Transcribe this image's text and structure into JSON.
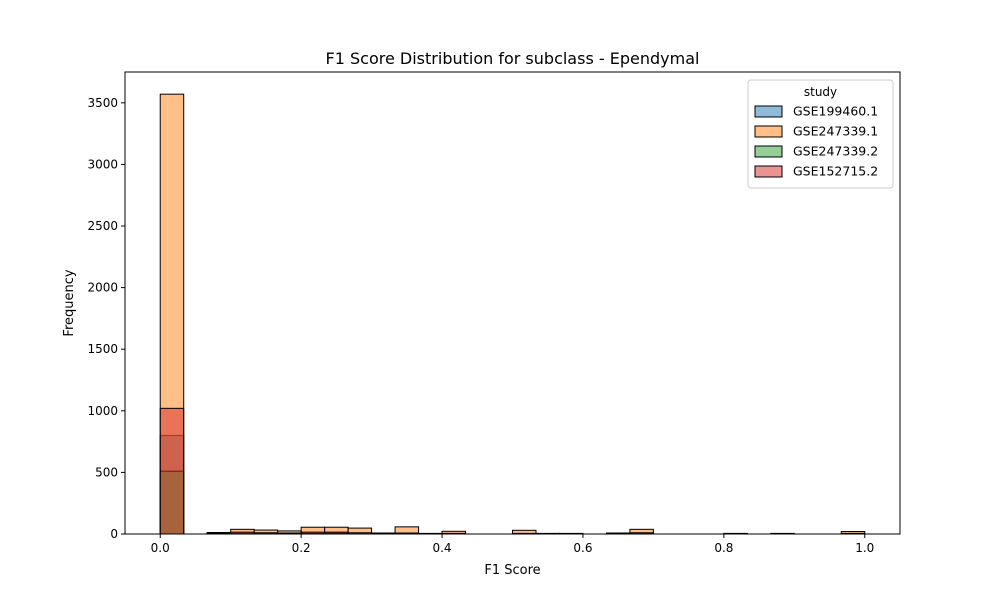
{
  "chart_data": {
    "type": "bar",
    "title": "F1 Score Distribution for subclass - Ependymal",
    "xlabel": "F1 Score",
    "ylabel": "Frequency",
    "xlim": [
      -0.05,
      1.05
    ],
    "ylim": [
      0,
      3750
    ],
    "xticks": [
      0.0,
      0.2,
      0.4,
      0.6,
      0.8,
      1.0
    ],
    "xtick_labels": [
      "0.0",
      "0.2",
      "0.4",
      "0.6",
      "0.8",
      "1.0"
    ],
    "yticks": [
      0,
      500,
      1000,
      1500,
      2000,
      2500,
      3000,
      3500
    ],
    "ytick_labels": [
      "0",
      "500",
      "1000",
      "1500",
      "2000",
      "2500",
      "3000",
      "3500"
    ],
    "grid": false,
    "bins": 30,
    "bin_range": [
      0,
      1
    ],
    "legend": {
      "title": "study",
      "placement": "top-right"
    },
    "series": [
      {
        "name": "GSE199460.1",
        "color": "#1f77b4",
        "values": [
          800,
          0,
          12,
          5,
          3,
          0,
          2,
          8,
          0,
          0,
          0,
          3,
          0,
          0,
          0,
          0,
          0,
          0,
          0,
          8,
          0,
          0,
          0,
          0,
          0,
          0,
          0,
          0,
          0,
          0
        ]
      },
      {
        "name": "GSE247339.1",
        "color": "#ff7f0e",
        "values": [
          3570,
          0,
          10,
          38,
          32,
          25,
          55,
          55,
          48,
          8,
          58,
          5,
          22,
          0,
          0,
          30,
          5,
          5,
          0,
          0,
          38,
          0,
          0,
          0,
          5,
          0,
          5,
          0,
          0,
          20
        ]
      },
      {
        "name": "GSE247339.2",
        "color": "#2ca02c",
        "values": [
          510,
          0,
          5,
          3,
          3,
          2,
          5,
          5,
          2,
          0,
          2,
          0,
          3,
          0,
          0,
          2,
          0,
          0,
          0,
          2,
          3,
          0,
          0,
          0,
          0,
          0,
          0,
          0,
          0,
          2
        ]
      },
      {
        "name": "GSE152715.2",
        "color": "#d62728",
        "values": [
          1020,
          0,
          5,
          15,
          10,
          8,
          15,
          15,
          10,
          2,
          8,
          0,
          5,
          0,
          0,
          5,
          0,
          0,
          0,
          3,
          10,
          0,
          0,
          0,
          0,
          0,
          0,
          0,
          0,
          5
        ]
      }
    ]
  }
}
